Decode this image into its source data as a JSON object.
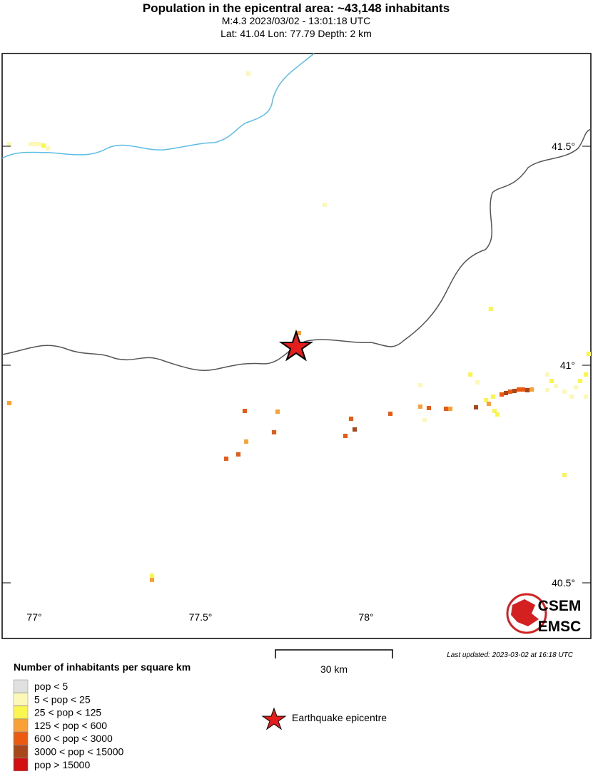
{
  "header": {
    "title": "Population in the epicentral area: ~43,148 inhabitants",
    "event": "M:4.3 2023/03/02 - 13:01:18 UTC",
    "location": "Lat: 41.04 Lon: 77.79 Depth: 2 km"
  },
  "map": {
    "lat_labels": [
      "41.5°",
      "41°",
      "40.5°"
    ],
    "lon_labels": [
      "77°",
      "77.5°",
      "78°"
    ],
    "scale_bar": "30 km",
    "last_updated": "Last updated: 2023-03-02 at 16:18 UTC",
    "logo": [
      "CSEM",
      "EMSC"
    ]
  },
  "legend": {
    "title": "Number of inhabitants per square km",
    "classes": [
      {
        "label": "pop < 5",
        "color": "#e0e0e0"
      },
      {
        "label": "5 < pop < 25",
        "color": "#fdf8b8"
      },
      {
        "label": "25 < pop < 125",
        "color": "#fbf550"
      },
      {
        "label": "125 < pop < 600",
        "color": "#f9a036"
      },
      {
        "label": "600 < pop < 3000",
        "color": "#ec5a12"
      },
      {
        "label": "3000 < pop < 15000",
        "color": "#a9471c"
      },
      {
        "label": "pop > 15000",
        "color": "#d40f0f"
      }
    ],
    "epicentre": "Earthquake epicentre"
  }
}
